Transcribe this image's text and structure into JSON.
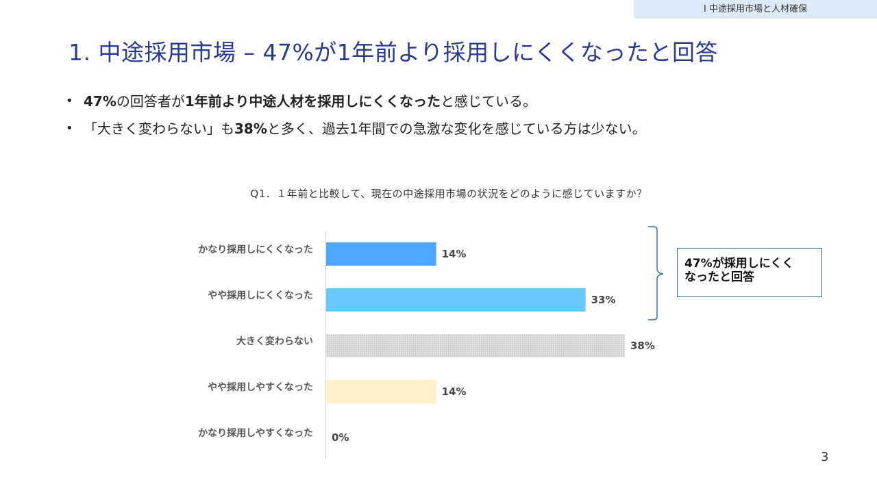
{
  "header": {
    "section_tag": "I 中途採用市場と人材確保"
  },
  "title": "1. 中途採用市場 – 47%が1年前より採用しにくくなったと回答",
  "bullets": [
    {
      "marker": "•",
      "bold1": "47%",
      "text1": "の回答者が",
      "bold2": "1年前より中途人材を採用しにくくなった",
      "text2": "と感じている。"
    },
    {
      "marker": "•",
      "text1": "「大きく変わらない」も",
      "bold1": "38%",
      "text2": "と多く、過去1年間での急激な変化を感じている方は少ない。"
    }
  ],
  "chart_data": {
    "type": "bar",
    "orientation": "horizontal",
    "title": "Q1．１年前と比較して、現在の中途採用市場の状況をどのように感じていますか？",
    "categories": [
      "かなり採用しにくくなった",
      "やや採用しにくくなった",
      "大きく変わらない",
      "やや採用しやすくなった",
      "かなり採用しやすくなった"
    ],
    "values": [
      14,
      33,
      38,
      14,
      0
    ],
    "labels": [
      "14%",
      "33%",
      "38%",
      "14%",
      "0%"
    ],
    "colors": [
      "#4da6ff",
      "#66c8ff",
      "#d0d0d0",
      "#fff0cc",
      "#cccccc"
    ],
    "unit": "%",
    "xlim": [
      0,
      38
    ]
  },
  "callout": {
    "line1": "47%が採用しにくく",
    "line2": "なったと回答"
  },
  "page_number": "3"
}
